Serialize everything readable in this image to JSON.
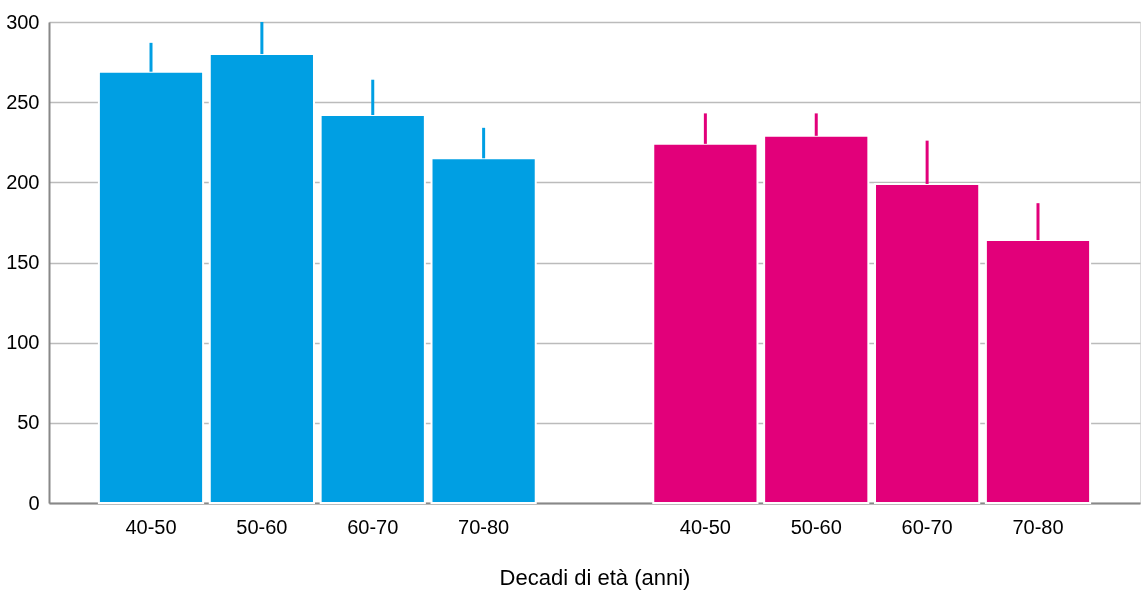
{
  "chart_data": {
    "type": "bar",
    "xlabel": "Decadi di età (anni)",
    "categories": [
      "40-50",
      "50-60",
      "60-70",
      "70-80",
      null,
      "40-50",
      "50-60",
      "60-70",
      "70-80"
    ],
    "series": [
      {
        "color": "#009fe3",
        "values": [
          269,
          280,
          242,
          215,
          null,
          null,
          null,
          null,
          null
        ],
        "errors": [
          [
            269,
            287
          ],
          [
            280,
            300
          ],
          [
            242,
            264
          ],
          [
            215,
            234
          ],
          null,
          null,
          null,
          null,
          null
        ]
      },
      {
        "color": "#e2007a",
        "values": [
          null,
          null,
          null,
          null,
          null,
          224,
          229,
          199,
          164
        ],
        "errors": [
          null,
          null,
          null,
          null,
          null,
          [
            224,
            243
          ],
          [
            229,
            243
          ],
          [
            199,
            226
          ],
          [
            164,
            187
          ]
        ]
      }
    ],
    "ylim": [
      0,
      300
    ],
    "yticks": [
      0,
      50,
      100,
      150,
      200,
      250,
      300
    ],
    "grid": "y"
  }
}
